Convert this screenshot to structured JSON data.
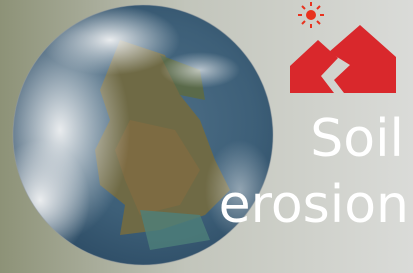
{
  "title": {
    "line1": "Soil",
    "line2": "erosion"
  }
}
